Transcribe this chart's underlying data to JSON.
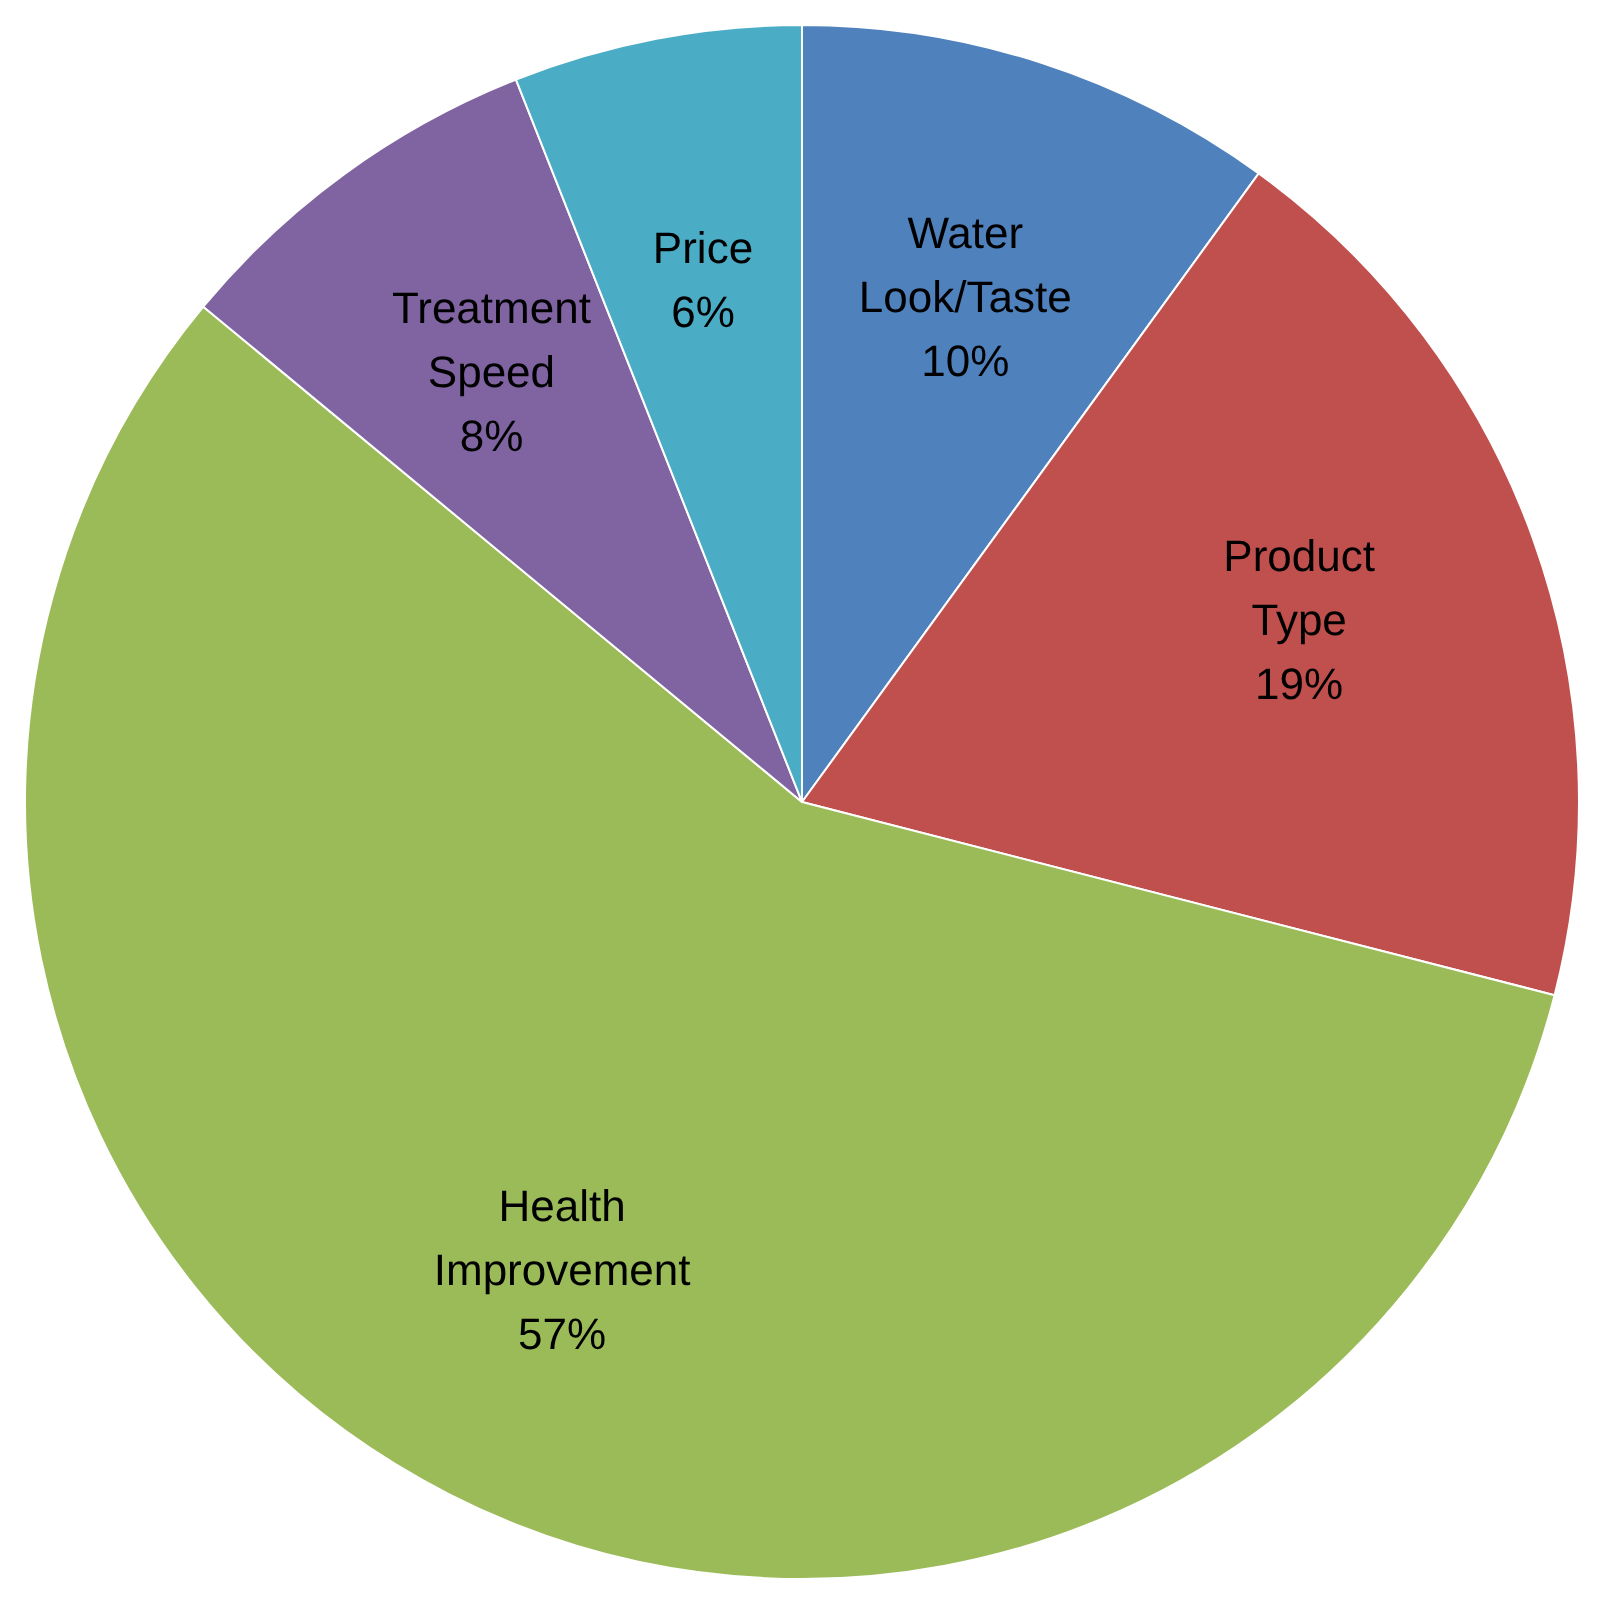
{
  "chart_data": {
    "type": "pie",
    "categories": [
      "Water Look/Taste",
      "Product Type",
      "Health Improvement",
      "Treatment Speed",
      "Price"
    ],
    "values": [
      10,
      19,
      57,
      8,
      6
    ],
    "colors": [
      "#4f81bd",
      "#c0504d",
      "#9bbb59",
      "#8064a2",
      "#4bacc6"
    ],
    "value_labels": [
      "10%",
      "19%",
      "57%",
      "8%",
      "6%"
    ],
    "legend": false
  }
}
